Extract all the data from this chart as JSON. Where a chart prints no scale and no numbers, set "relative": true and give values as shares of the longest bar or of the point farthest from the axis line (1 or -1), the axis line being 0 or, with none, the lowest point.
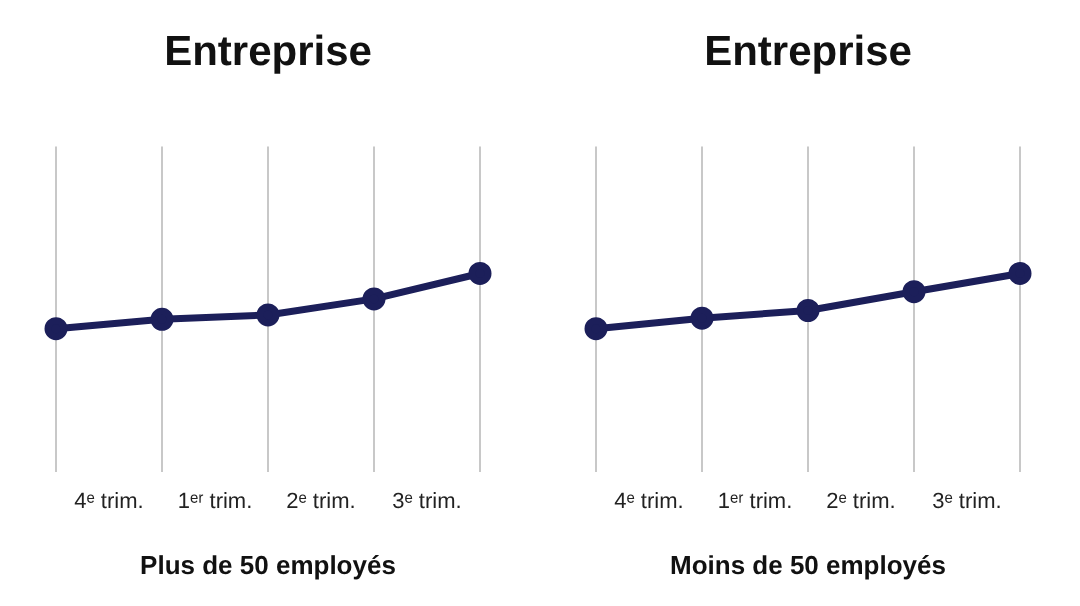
{
  "chart_data": [
    {
      "type": "line",
      "title": "Entreprise",
      "xlabel": "Plus de 50 employés",
      "relative": true,
      "grid": "x",
      "marker": "circle",
      "line_style": "solid",
      "legend": false,
      "categories": [
        null,
        "4ᵉ trim.",
        null,
        "1ᵉʳ trim.",
        null,
        "2ᵉ trim.",
        null,
        "3ᵉ trim.",
        null
      ],
      "series": [
        {
          "color": "#1c1f5a",
          "values": [
            0,
            null,
            0.17,
            null,
            0.25,
            null,
            0.54,
            null,
            1
          ]
        }
      ]
    },
    {
      "type": "line",
      "title": "Entreprise",
      "xlabel": "Moins de 50 employés",
      "relative": true,
      "grid": "x",
      "marker": "circle",
      "line_style": "solid",
      "legend": false,
      "categories": [
        null,
        "4ᵉ trim.",
        null,
        "1ᵉʳ trim.",
        null,
        "2ᵉ trim.",
        null,
        "3ᵉ trim.",
        null
      ],
      "series": [
        {
          "color": "#1c1f5a",
          "values": [
            0,
            null,
            0.19,
            null,
            0.33,
            null,
            0.67,
            null,
            1
          ]
        }
      ]
    }
  ]
}
